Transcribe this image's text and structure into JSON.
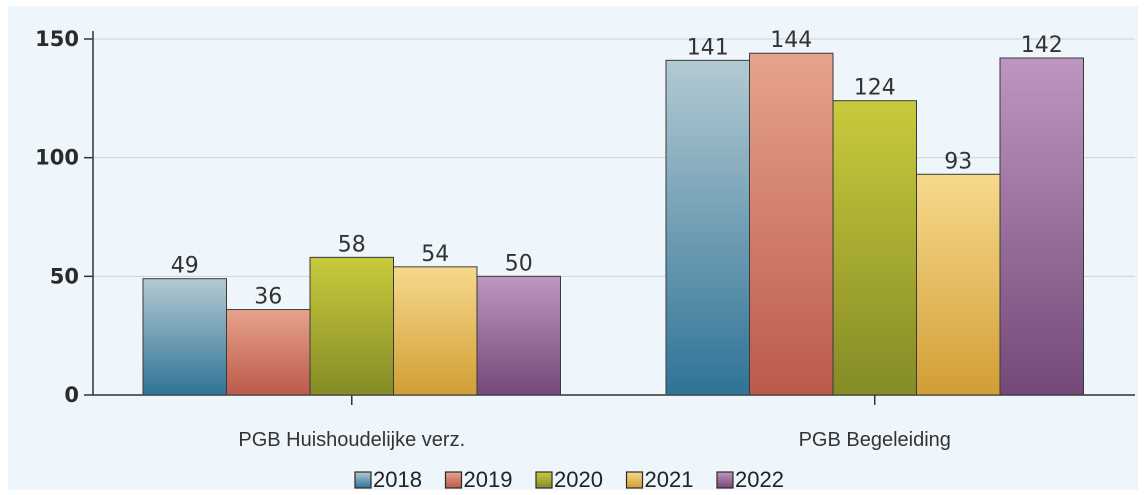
{
  "chart_data": {
    "type": "bar",
    "categories": [
      "PGB Huishoudelijke verz.",
      "PGB Begeleiding"
    ],
    "series": [
      {
        "name": "2018",
        "values": [
          49,
          141
        ],
        "color_top": "#b3cad2",
        "color_bottom": "#2f7397"
      },
      {
        "name": "2019",
        "values": [
          36,
          144
        ],
        "color_top": "#e7a38d",
        "color_bottom": "#bb5a4a"
      },
      {
        "name": "2020",
        "values": [
          58,
          124
        ],
        "color_top": "#c8cb3c",
        "color_bottom": "#858b26"
      },
      {
        "name": "2021",
        "values": [
          54,
          93
        ],
        "color_top": "#f7d98c",
        "color_bottom": "#d19e35"
      },
      {
        "name": "2022",
        "values": [
          50,
          142
        ],
        "color_top": "#bd97bf",
        "color_bottom": "#744878"
      }
    ],
    "ylim": [
      0,
      150
    ],
    "yticks": [
      0,
      50,
      100,
      150
    ],
    "grid": true,
    "legend": "bottom",
    "xlabel": "",
    "ylabel": ""
  }
}
